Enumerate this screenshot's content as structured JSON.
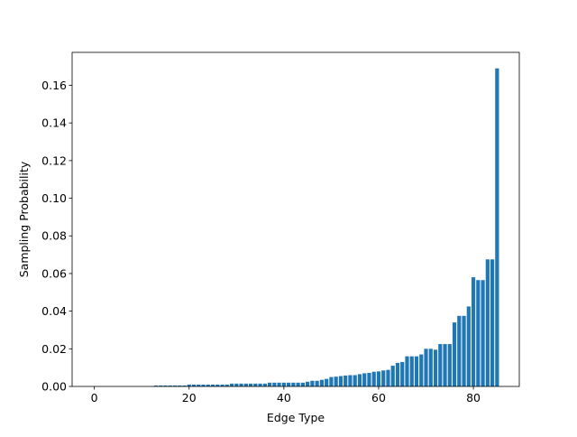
{
  "chart_data": {
    "type": "bar",
    "x": [
      0,
      1,
      2,
      3,
      4,
      5,
      6,
      7,
      8,
      9,
      10,
      11,
      12,
      13,
      14,
      15,
      16,
      17,
      18,
      19,
      20,
      21,
      22,
      23,
      24,
      25,
      26,
      27,
      28,
      29,
      30,
      31,
      32,
      33,
      34,
      35,
      36,
      37,
      38,
      39,
      40,
      41,
      42,
      43,
      44,
      45,
      46,
      47,
      48,
      49,
      50,
      51,
      52,
      53,
      54,
      55,
      56,
      57,
      58,
      59,
      60,
      61,
      62,
      63,
      64,
      65,
      66,
      67,
      68,
      69,
      70,
      71,
      72,
      73,
      74,
      75,
      76,
      77,
      78,
      79,
      80,
      81,
      82,
      83,
      84,
      85
    ],
    "values": [
      0,
      0,
      0,
      0,
      0,
      0,
      0,
      0,
      0,
      0,
      0,
      0,
      0,
      0.0005,
      0.0005,
      0.0005,
      0.0005,
      0.0005,
      0.0005,
      0.0005,
      0.001,
      0.001,
      0.001,
      0.001,
      0.001,
      0.001,
      0.001,
      0.001,
      0.001,
      0.0015,
      0.0015,
      0.0015,
      0.0015,
      0.0015,
      0.0015,
      0.0015,
      0.0015,
      0.002,
      0.002,
      0.002,
      0.002,
      0.002,
      0.002,
      0.002,
      0.002,
      0.0025,
      0.003,
      0.003,
      0.0035,
      0.004,
      0.005,
      0.0052,
      0.0055,
      0.0058,
      0.006,
      0.006,
      0.0065,
      0.007,
      0.0072,
      0.0078,
      0.008,
      0.0085,
      0.0088,
      0.011,
      0.0125,
      0.013,
      0.016,
      0.016,
      0.016,
      0.017,
      0.02,
      0.02,
      0.0195,
      0.0225,
      0.0225,
      0.0225,
      0.034,
      0.0375,
      0.0375,
      0.0425,
      0.058,
      0.0565,
      0.0565,
      0.0675,
      0.0675,
      0.169
    ],
    "color": "#1f77b4",
    "xlabel": "Edge Type",
    "ylabel": "Sampling Probability",
    "xlim": [
      -4.69,
      89.69
    ],
    "xticks": [
      0,
      20,
      40,
      60,
      80
    ],
    "ylim": [
      0,
      0.1775
    ],
    "yticks": [
      {
        "value": 0,
        "label": "0.00"
      },
      0.02,
      0.04,
      0.06,
      0.08,
      {
        "value": 0.1,
        "label": "0.10"
      },
      0.12,
      0.14,
      0.16
    ]
  }
}
